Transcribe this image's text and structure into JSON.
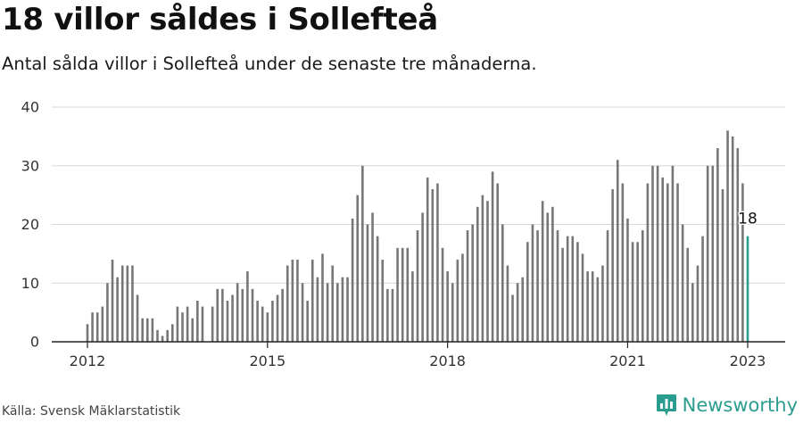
{
  "title": "18 villor såldes i Sollefteå",
  "subtitle": "Antal sålda villor i Sollefteå under de senaste tre månaderna.",
  "source": "Källa: Svensk Mäklarstatistik",
  "brand": {
    "name": "Newsworthy",
    "logo_icon": "bar-chart-badge-icon",
    "color": "#2a9d8f"
  },
  "chart_data": {
    "type": "bar",
    "x_start": "2012-01",
    "x_end": "2023-01",
    "x_ticks": [
      "2012",
      "2015",
      "2018",
      "2021",
      "2023"
    ],
    "y_ticks": [
      0,
      10,
      20,
      30,
      40
    ],
    "ylim": [
      0,
      40
    ],
    "grid": true,
    "bar_color": "#777777",
    "highlight_color": "#2a9d8f",
    "highlight_label": "18",
    "values": [
      3,
      5,
      5,
      6,
      10,
      14,
      11,
      13,
      13,
      13,
      8,
      4,
      4,
      4,
      2,
      1,
      2,
      3,
      6,
      5,
      6,
      4,
      7,
      6,
      null,
      6,
      9,
      9,
      7,
      8,
      10,
      9,
      12,
      9,
      7,
      6,
      5,
      7,
      8,
      9,
      13,
      14,
      14,
      10,
      7,
      14,
      11,
      15,
      10,
      13,
      10,
      11,
      11,
      21,
      25,
      30,
      20,
      22,
      18,
      14,
      9,
      9,
      16,
      16,
      16,
      12,
      19,
      22,
      28,
      26,
      27,
      16,
      12,
      10,
      14,
      15,
      19,
      20,
      23,
      25,
      24,
      29,
      27,
      20,
      13,
      8,
      10,
      11,
      17,
      20,
      19,
      24,
      22,
      23,
      19,
      16,
      18,
      18,
      17,
      15,
      12,
      12,
      11,
      13,
      19,
      26,
      31,
      27,
      21,
      17,
      17,
      19,
      27,
      30,
      30,
      28,
      27,
      30,
      27,
      20,
      16,
      10,
      13,
      18,
      30,
      30,
      33,
      26,
      36,
      35,
      33,
      27,
      18
    ]
  }
}
